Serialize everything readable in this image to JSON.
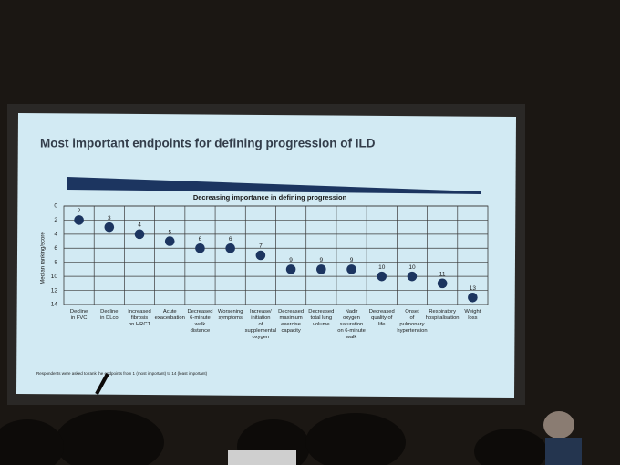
{
  "chart_data": {
    "type": "scatter",
    "title": "Most important endpoints for defining progression of ILD",
    "banner": "Decreasing importance in defining progression",
    "y_label": "Median ranking/score",
    "footnote": "Respondents were asked to rank the endpoints from 1 (most important) to 14 (least important)",
    "categories": [
      [
        "Decline",
        "in FVC"
      ],
      [
        "Decline",
        "in DLco"
      ],
      [
        "Increased",
        "fibrosis",
        "on HRCT"
      ],
      [
        "Acute",
        "exacerbation"
      ],
      [
        "Decreased",
        "6-minute",
        "walk",
        "distance"
      ],
      [
        "Worsening",
        "symptoms"
      ],
      [
        "Increase/",
        "initiation",
        "of",
        "supplemental",
        "oxygen"
      ],
      [
        "Decreased",
        "maximum",
        "exercise",
        "capacity"
      ],
      [
        "Decreased",
        "total lung",
        "volume"
      ],
      [
        "Nadir",
        "oxygen",
        "saturation",
        "on 6-minute",
        "walk"
      ],
      [
        "Decreased",
        "quality of",
        "life"
      ],
      [
        "Onset",
        "of",
        "pulmonary",
        "hypertension"
      ],
      [
        "Respiratory",
        "hospitalisation"
      ],
      [
        "Weight",
        "loss"
      ]
    ],
    "values": [
      2,
      3,
      4,
      5,
      6,
      6,
      7,
      9,
      9,
      9,
      10,
      10,
      11,
      13
    ],
    "color": "#1c3560",
    "ylim": [
      14,
      0
    ],
    "yticks": [
      0,
      2,
      4,
      6,
      8,
      10,
      12,
      14
    ],
    "grid": true
  }
}
